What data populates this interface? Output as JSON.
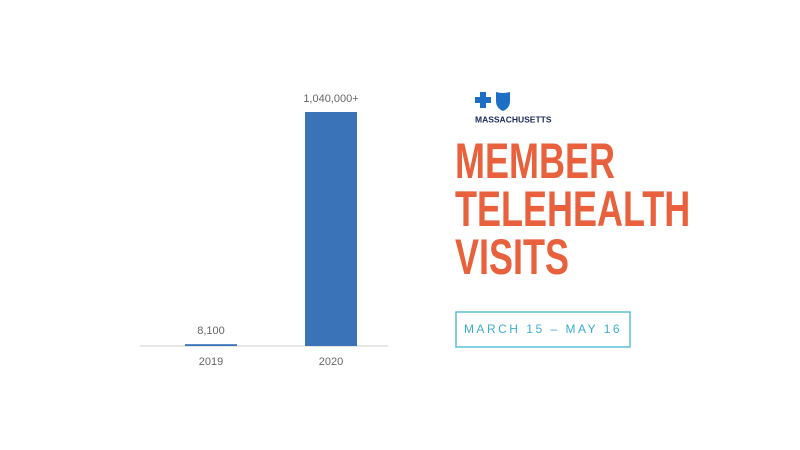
{
  "logo": {
    "text": "MASSACHUSETTS"
  },
  "chart_data": {
    "type": "bar",
    "title_lines": [
      "MEMBER",
      "TELEHEALTH",
      "VISITS"
    ],
    "subtitle": "MARCH 15 – MAY 16",
    "categories": [
      "2019",
      "2020"
    ],
    "values": [
      8100,
      1040000
    ],
    "value_labels": [
      "8,100",
      "1,040,000+"
    ],
    "color": "#3a73b8"
  }
}
